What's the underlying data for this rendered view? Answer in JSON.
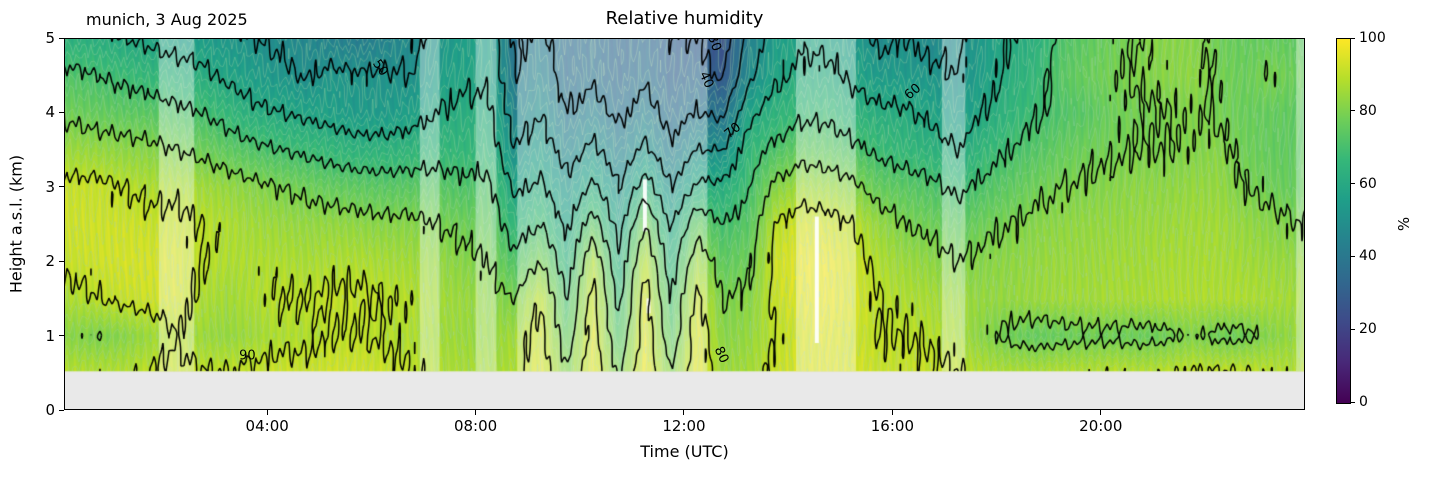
{
  "figure": {
    "title": "Relative humidity",
    "annotation": "munich, 3 Aug 2025"
  },
  "axes": {
    "x_label": "Time (UTC)",
    "y_label": "Height a.s.l. (km)",
    "x_ticks": [
      {
        "t": 4,
        "label": "04:00"
      },
      {
        "t": 8,
        "label": "08:00"
      },
      {
        "t": 12,
        "label": "12:00"
      },
      {
        "t": 16,
        "label": "16:00"
      },
      {
        "t": 20,
        "label": "20:00"
      }
    ],
    "y_ticks": [
      {
        "v": 0,
        "label": "0"
      },
      {
        "v": 1,
        "label": "1"
      },
      {
        "v": 2,
        "label": "2"
      },
      {
        "v": 3,
        "label": "3"
      },
      {
        "v": 4,
        "label": "4"
      },
      {
        "v": 5,
        "label": "5"
      }
    ],
    "x_range_hours": [
      0.1,
      23.92
    ],
    "y_range_km": [
      0,
      5
    ]
  },
  "colorbar": {
    "label": "%",
    "ticks": [
      0,
      20,
      40,
      60,
      80,
      100
    ],
    "range": [
      0,
      100
    ],
    "colormap": "viridis",
    "stops": [
      "#440154",
      "#482878",
      "#3e4a89",
      "#31688e",
      "#26828e",
      "#1f9e89",
      "#35b779",
      "#6ece58",
      "#b5de2b",
      "#fde725"
    ]
  },
  "chart_data": {
    "type": "heatmap",
    "series_name": "relative humidity",
    "unit": "%",
    "value_range": [
      0,
      100
    ],
    "x_hours": [
      0.25,
      0.75,
      1.25,
      1.75,
      2.25,
      2.75,
      3.25,
      3.75,
      4.25,
      4.75,
      5.25,
      5.75,
      6.25,
      6.75,
      7.25,
      7.75,
      8.25,
      8.75,
      9.25,
      9.75,
      10.25,
      10.75,
      11.25,
      11.75,
      12.25,
      12.75,
      13.25,
      13.75,
      14.25,
      14.75,
      15.25,
      15.75,
      16.25,
      16.75,
      17.25,
      17.75,
      18.25,
      18.75,
      19.25,
      19.75,
      20.25,
      20.75,
      21.25,
      21.75,
      22.25,
      22.75,
      23.25,
      23.75
    ],
    "heights_km": [
      0.55,
      1.0,
      1.5,
      2.0,
      2.5,
      3.0,
      3.5,
      4.0,
      4.5,
      5.0
    ],
    "grid_orientation": "grid_rh[time_index][height_index], heights listed bottom to top",
    "grid_rh": [
      [
        88,
        82,
        88,
        92,
        93,
        92,
        85,
        78,
        72,
        63
      ],
      [
        88,
        80,
        90,
        93,
        93,
        92,
        84,
        76,
        70,
        62
      ],
      [
        88,
        82,
        92,
        94,
        93,
        90,
        83,
        75,
        68,
        60
      ],
      [
        90,
        85,
        93,
        94,
        92,
        88,
        82,
        74,
        66,
        58
      ],
      [
        92,
        90,
        94,
        94,
        92,
        88,
        80,
        72,
        64,
        56
      ],
      [
        90,
        85,
        88,
        90,
        90,
        86,
        78,
        70,
        62,
        55
      ],
      [
        90,
        84,
        86,
        88,
        88,
        84,
        75,
        66,
        58,
        52
      ],
      [
        91,
        86,
        88,
        88,
        86,
        82,
        72,
        62,
        55,
        50
      ],
      [
        92,
        88,
        90,
        88,
        85,
        80,
        70,
        60,
        52,
        48
      ],
      [
        92,
        88,
        90,
        87,
        84,
        78,
        68,
        58,
        49,
        46
      ],
      [
        93,
        90,
        91,
        88,
        84,
        76,
        66,
        56,
        52,
        44
      ],
      [
        93,
        90,
        91,
        88,
        83,
        75,
        64,
        54,
        51,
        42
      ],
      [
        92,
        89,
        90,
        87,
        82,
        74,
        64,
        54,
        51,
        44
      ],
      [
        90,
        88,
        89,
        86,
        82,
        74,
        65,
        56,
        50,
        48
      ],
      [
        88,
        86,
        86,
        84,
        80,
        74,
        66,
        60,
        55,
        52
      ],
      [
        87,
        85,
        85,
        82,
        78,
        72,
        66,
        62,
        58,
        55
      ],
      [
        86,
        84,
        83,
        80,
        76,
        72,
        66,
        62,
        58,
        56
      ],
      [
        88,
        86,
        80,
        72,
        65,
        58,
        50,
        45,
        40,
        38
      ],
      [
        95,
        93,
        90,
        80,
        70,
        62,
        55,
        50,
        45,
        42
      ],
      [
        80,
        75,
        70,
        64,
        58,
        52,
        46,
        40,
        36,
        35
      ],
      [
        96,
        95,
        93,
        88,
        75,
        62,
        52,
        44,
        38,
        36
      ],
      [
        78,
        72,
        68,
        62,
        56,
        50,
        44,
        38,
        34,
        33
      ],
      [
        97,
        96,
        94,
        90,
        80,
        65,
        52,
        44,
        38,
        35
      ],
      [
        80,
        74,
        70,
        64,
        58,
        50,
        42,
        36,
        32,
        31
      ],
      [
        96,
        95,
        92,
        86,
        76,
        62,
        50,
        40,
        34,
        30
      ],
      [
        85,
        82,
        80,
        75,
        70,
        62,
        50,
        38,
        28,
        25
      ],
      [
        86,
        84,
        82,
        78,
        74,
        70,
        66,
        58,
        48,
        44
      ],
      [
        92,
        90,
        92,
        93,
        90,
        82,
        72,
        64,
        58,
        55
      ],
      [
        94,
        94,
        96,
        97,
        94,
        86,
        76,
        68,
        62,
        58
      ],
      [
        95,
        95,
        97,
        97,
        93,
        85,
        75,
        68,
        62,
        58
      ],
      [
        94,
        93,
        94,
        93,
        90,
        82,
        72,
        64,
        58,
        54
      ],
      [
        92,
        90,
        90,
        88,
        84,
        76,
        68,
        62,
        54,
        48
      ],
      [
        92,
        90,
        88,
        85,
        80,
        74,
        66,
        61,
        54,
        50
      ],
      [
        91,
        89,
        87,
        83,
        78,
        72,
        64,
        58,
        52,
        47
      ],
      [
        90,
        87,
        85,
        80,
        75,
        68,
        60,
        54,
        50,
        48
      ],
      [
        88,
        82,
        84,
        82,
        78,
        72,
        66,
        60,
        56,
        54
      ],
      [
        87,
        78,
        84,
        83,
        80,
        75,
        70,
        65,
        62,
        60
      ],
      [
        87,
        76,
        85,
        84,
        82,
        78,
        73,
        69,
        66,
        63
      ],
      [
        88,
        77,
        86,
        85,
        83,
        80,
        76,
        72,
        74,
        72
      ],
      [
        88,
        78,
        86,
        85,
        84,
        81,
        78,
        74,
        77,
        75
      ],
      [
        89,
        78,
        87,
        86,
        84,
        82,
        79,
        78,
        79,
        78
      ],
      [
        88,
        77,
        87,
        86,
        85,
        83,
        80,
        79,
        81,
        80
      ],
      [
        89,
        78,
        88,
        87,
        85,
        83,
        80,
        80,
        82,
        82
      ],
      [
        90,
        81,
        88,
        87,
        86,
        84,
        81,
        81,
        83,
        82
      ],
      [
        90,
        78,
        88,
        87,
        86,
        84,
        82,
        79,
        79,
        78
      ],
      [
        90,
        78,
        88,
        86,
        84,
        80,
        78,
        77,
        77,
        76
      ],
      [
        89,
        82,
        87,
        85,
        82,
        78,
        76,
        76,
        80,
        76
      ],
      [
        88,
        84,
        86,
        84,
        80,
        76,
        75,
        75,
        77,
        75
      ]
    ],
    "contour_levels_major": [
      30,
      40,
      50,
      60,
      70,
      80,
      90
    ],
    "contour_levels_minor_step": 2.5,
    "contour_labels": [
      {
        "text": "50",
        "t": 6.16,
        "h": 4.6,
        "rot": 55
      },
      {
        "text": "30",
        "t": 12.57,
        "h": 4.93,
        "rot": 70
      },
      {
        "text": "40",
        "t": 12.42,
        "h": 4.44,
        "rot": 65
      },
      {
        "text": "70",
        "t": 12.95,
        "h": 3.75,
        "rot": -40
      },
      {
        "text": "60",
        "t": 16.4,
        "h": 4.28,
        "rot": -40
      },
      {
        "text": "90",
        "t": 3.62,
        "h": 0.73,
        "rot": 0
      },
      {
        "text": "80",
        "t": 12.72,
        "h": 0.74,
        "rot": 65
      }
    ],
    "masked_below_km": 0.52,
    "washed_intervals": [
      [
        1.92,
        2.6
      ],
      [
        6.93,
        7.31
      ],
      [
        8.0,
        8.4
      ],
      [
        8.8,
        12.45
      ],
      [
        14.15,
        15.3
      ],
      [
        16.95,
        17.4
      ],
      [
        23.75,
        23.92
      ]
    ],
    "missing_streaks": [
      {
        "t": 14.55,
        "h1": 0.9,
        "h2": 2.6
      },
      {
        "t": 11.25,
        "h1": 2.4,
        "h2": 3.1
      },
      {
        "t": 11.32,
        "h1": 1.3,
        "h2": 1.5
      }
    ]
  }
}
